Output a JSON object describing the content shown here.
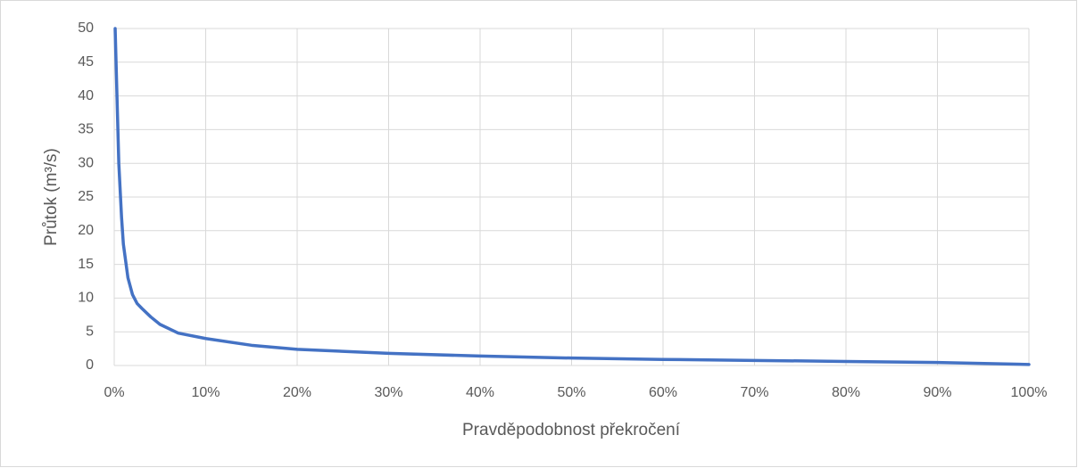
{
  "chart_data": {
    "type": "line",
    "x_label": "Pravděpodobnost překročení",
    "y_label": "Průtok (m³/s)",
    "x": [
      0.1,
      0.3,
      0.5,
      0.8,
      1,
      1.5,
      2,
      2.5,
      3,
      4,
      5,
      7,
      10,
      15,
      20,
      30,
      40,
      50,
      60,
      70,
      80,
      90,
      100
    ],
    "values": [
      50,
      40,
      30,
      22,
      18,
      13,
      10.5,
      9.2,
      8.5,
      7.2,
      6.1,
      4.8,
      4,
      3,
      2.4,
      1.8,
      1.4,
      1.1,
      0.9,
      0.75,
      0.6,
      0.45,
      0.15
    ],
    "color": "#4472c4",
    "xlim": [
      0,
      100
    ],
    "xticks": [
      {
        "value": 0,
        "label": "0%"
      },
      {
        "value": 10,
        "label": "10%"
      },
      {
        "value": 20,
        "label": "20%"
      },
      {
        "value": 30,
        "label": "30%"
      },
      {
        "value": 40,
        "label": "40%"
      },
      {
        "value": 50,
        "label": "50%"
      },
      {
        "value": 60,
        "label": "60%"
      },
      {
        "value": 70,
        "label": "70%"
      },
      {
        "value": 80,
        "label": "80%"
      },
      {
        "value": 90,
        "label": "90%"
      },
      {
        "value": 100,
        "label": "100%"
      }
    ],
    "ylim": [
      0,
      50
    ],
    "yticks": [
      0,
      5,
      10,
      15,
      20,
      25,
      30,
      35,
      40,
      45,
      50
    ],
    "grid": true
  }
}
